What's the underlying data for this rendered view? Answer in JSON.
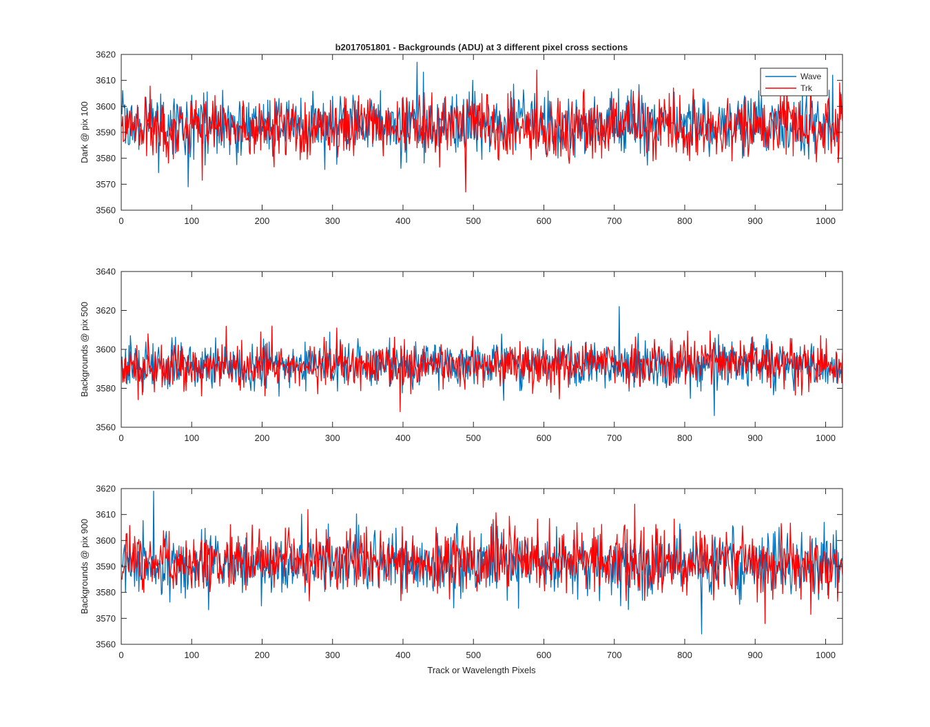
{
  "figure": {
    "title": "b2017051801 - Backgrounds (ADU) at 3 different pixel cross sections",
    "xlabel": "Track or Wavelength Pixels"
  },
  "legend": {
    "placement": "top-right",
    "entries": [
      {
        "name": "Wave",
        "color": "#0072BD"
      },
      {
        "name": "Trk",
        "color": "#FF0000"
      }
    ]
  },
  "chart_data": [
    {
      "type": "line",
      "ylabel": "Dark @ pix 100",
      "xlim": [
        0,
        1024
      ],
      "ylim": [
        3560,
        3620
      ],
      "xticks": [
        0,
        100,
        200,
        300,
        400,
        500,
        600,
        700,
        800,
        900,
        1000
      ],
      "yticks": [
        3560,
        3570,
        3580,
        3590,
        3600,
        3610,
        3620
      ],
      "grid": false,
      "noise_model": {
        "points_per_series": 1024,
        "approx_mean": 3592,
        "approx_std": 6
      },
      "series": [
        {
          "name": "Wave",
          "color": "#0072BD",
          "approx_mean": 3593,
          "approx_min": 3569,
          "approx_max": 3617
        },
        {
          "name": "Trk",
          "color": "#FF0000",
          "approx_mean": 3592,
          "approx_min": 3567,
          "approx_max": 3614
        }
      ]
    },
    {
      "type": "line",
      "ylabel": "Backgrounds @ pix 500",
      "xlim": [
        0,
        1024
      ],
      "ylim": [
        3560,
        3640
      ],
      "xticks": [
        0,
        100,
        200,
        300,
        400,
        500,
        600,
        700,
        800,
        900,
        1000
      ],
      "yticks": [
        3560,
        3580,
        3600,
        3620,
        3640
      ],
      "grid": false,
      "noise_model": {
        "points_per_series": 1024,
        "approx_mean": 3592,
        "approx_std": 6
      },
      "series": [
        {
          "name": "Wave",
          "color": "#0072BD",
          "approx_mean": 3592,
          "approx_min": 3566,
          "approx_max": 3622
        },
        {
          "name": "Trk",
          "color": "#FF0000",
          "approx_mean": 3592,
          "approx_min": 3568,
          "approx_max": 3612
        }
      ]
    },
    {
      "type": "line",
      "ylabel": "Backgrounds @ pix 900",
      "xlim": [
        0,
        1024
      ],
      "ylim": [
        3560,
        3620
      ],
      "xticks": [
        0,
        100,
        200,
        300,
        400,
        500,
        600,
        700,
        800,
        900,
        1000
      ],
      "yticks": [
        3560,
        3570,
        3580,
        3590,
        3600,
        3610,
        3620
      ],
      "grid": false,
      "noise_model": {
        "points_per_series": 1024,
        "approx_mean": 3592,
        "approx_std": 6
      },
      "series": [
        {
          "name": "Wave",
          "color": "#0072BD",
          "approx_mean": 3591,
          "approx_min": 3564,
          "approx_max": 3619
        },
        {
          "name": "Trk",
          "color": "#FF0000",
          "approx_mean": 3592,
          "approx_min": 3568,
          "approx_max": 3614
        }
      ]
    }
  ]
}
